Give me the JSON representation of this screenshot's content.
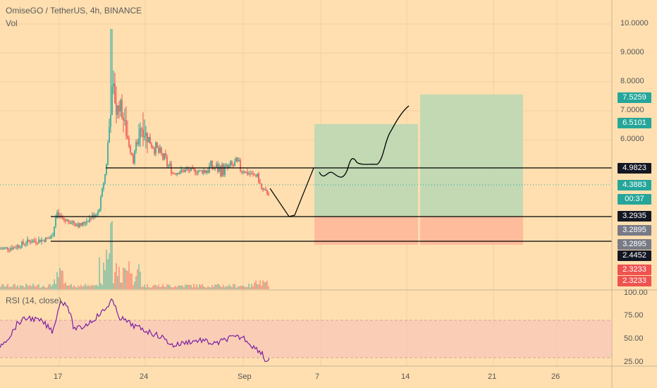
{
  "header": {
    "symbol_title": "OmiseGO / TetherUS, 4h, BINANCE",
    "vol_label": "Vol"
  },
  "rsi": {
    "label": "RSI (14, close)",
    "levels": [
      70,
      30
    ]
  },
  "colors": {
    "background": "#ffdfb0",
    "up": "#26a69a",
    "down": "#ef5350",
    "rsi_line": "#7b1fa2",
    "target_zone": "#b7d8b4",
    "stop_zone": "#ffb89a"
  },
  "price_axis": [
    "10.0000",
    "9.0000",
    "8.0000",
    "7.0000",
    "6.0000"
  ],
  "price_tags": [
    {
      "text": "7.5259",
      "color": "#26a69a"
    },
    {
      "text": "6.5101",
      "color": "#26a69a"
    },
    {
      "text": "4.9823",
      "color": "#131722"
    },
    {
      "text": "4.3883",
      "color": "#26a69a"
    },
    {
      "text": "00:37",
      "color": "#26a69a"
    },
    {
      "text": "3.2935",
      "color": "#131722"
    },
    {
      "text": "3.2895",
      "color": "#787b86"
    },
    {
      "text": "3.2895",
      "color": "#787b86"
    },
    {
      "text": "2.4452",
      "color": "#131722"
    },
    {
      "text": "2.3233",
      "color": "#ef5350"
    },
    {
      "text": "2.3233",
      "color": "#ef5350"
    }
  ],
  "rsi_axis": [
    "100.00",
    "75.00",
    "50.00",
    "25.00"
  ],
  "time_axis": [
    "17",
    "24",
    "Sep",
    "7",
    "14",
    "21",
    "26"
  ],
  "horizontal_levels": [
    4.9823,
    3.2935,
    2.4452
  ]
}
